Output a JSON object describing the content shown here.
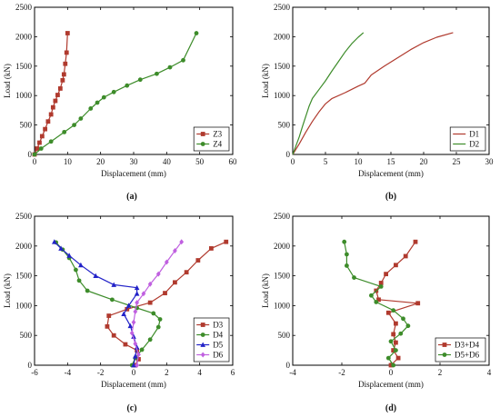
{
  "chart_data": [
    {
      "type": "line",
      "caption": "(a)",
      "xlabel": "Displacement (mm)",
      "ylabel": "Load (kN)",
      "xlim": [
        0,
        60
      ],
      "ylim": [
        0,
        2500
      ],
      "xticks": [
        0,
        10,
        20,
        30,
        40,
        50,
        60
      ],
      "yticks": [
        0,
        500,
        1000,
        1500,
        2000,
        2500
      ],
      "legend": "bottom-right",
      "series": [
        {
          "name": "Z3",
          "color": "#b03a2e",
          "marker": "square",
          "points": [
            [
              0,
              0
            ],
            [
              0.8,
              100
            ],
            [
              1.5,
              200
            ],
            [
              2.3,
              310
            ],
            [
              3.2,
              430
            ],
            [
              4.1,
              560
            ],
            [
              5,
              680
            ],
            [
              5.6,
              800
            ],
            [
              6.3,
              910
            ],
            [
              7,
              1010
            ],
            [
              7.8,
              1120
            ],
            [
              8.5,
              1260
            ],
            [
              8.9,
              1360
            ],
            [
              9.3,
              1540
            ],
            [
              9.7,
              1730
            ],
            [
              10,
              2060
            ]
          ]
        },
        {
          "name": "Z4",
          "color": "#3d8c2a",
          "marker": "circle",
          "points": [
            [
              0,
              0
            ],
            [
              2,
              100
            ],
            [
              5,
              220
            ],
            [
              9,
              380
            ],
            [
              12,
              500
            ],
            [
              14,
              610
            ],
            [
              17,
              780
            ],
            [
              19,
              880
            ],
            [
              21,
              970
            ],
            [
              24,
              1060
            ],
            [
              28,
              1170
            ],
            [
              32,
              1270
            ],
            [
              37,
              1370
            ],
            [
              41,
              1480
            ],
            [
              45,
              1600
            ],
            [
              49,
              2060
            ]
          ]
        }
      ]
    },
    {
      "type": "line",
      "caption": "(b)",
      "xlabel": "Displacement (mm)",
      "ylabel": "Load (kN)",
      "xlim": [
        0,
        30
      ],
      "ylim": [
        0,
        2500
      ],
      "xticks": [
        0,
        5,
        10,
        15,
        20,
        25,
        30
      ],
      "yticks": [
        0,
        500,
        1000,
        1500,
        2000,
        2500
      ],
      "legend": "bottom-right",
      "series": [
        {
          "name": "D1",
          "color": "#b03a2e",
          "marker": "none",
          "points": [
            [
              0,
              0
            ],
            [
              1,
              180
            ],
            [
              2,
              380
            ],
            [
              3,
              560
            ],
            [
              4,
              720
            ],
            [
              5,
              860
            ],
            [
              6,
              950
            ],
            [
              8,
              1050
            ],
            [
              10,
              1160
            ],
            [
              11,
              1210
            ],
            [
              12,
              1350
            ],
            [
              14,
              1500
            ],
            [
              16,
              1640
            ],
            [
              18,
              1780
            ],
            [
              20,
              1900
            ],
            [
              22,
              1990
            ],
            [
              24.5,
              2070
            ]
          ]
        },
        {
          "name": "D2",
          "color": "#3d8c2a",
          "marker": "none",
          "points": [
            [
              0,
              0
            ],
            [
              0.5,
              150
            ],
            [
              1,
              300
            ],
            [
              1.5,
              480
            ],
            [
              2,
              650
            ],
            [
              2.5,
              820
            ],
            [
              3,
              950
            ],
            [
              4,
              1100
            ],
            [
              5,
              1250
            ],
            [
              6,
              1420
            ],
            [
              7,
              1580
            ],
            [
              8,
              1740
            ],
            [
              9,
              1880
            ],
            [
              10,
              1990
            ],
            [
              10.8,
              2070
            ]
          ]
        }
      ]
    },
    {
      "type": "line",
      "caption": "(c)",
      "xlabel": "Displacement (mm)",
      "ylabel": "Load (kN)",
      "xlim": [
        -6,
        6
      ],
      "ylim": [
        0,
        2500
      ],
      "xticks": [
        -6,
        -4,
        -2,
        0,
        2,
        4,
        6
      ],
      "yticks": [
        0,
        500,
        1000,
        1500,
        2000,
        2500
      ],
      "legend": "bottom-right",
      "series": [
        {
          "name": "D3",
          "color": "#b03a2e",
          "marker": "square",
          "points": [
            [
              0.1,
              0
            ],
            [
              0.3,
              100
            ],
            [
              0.2,
              250
            ],
            [
              -0.5,
              350
            ],
            [
              -1.2,
              500
            ],
            [
              -1.6,
              650
            ],
            [
              -1.5,
              830
            ],
            [
              -0.4,
              940
            ],
            [
              1.0,
              1050
            ],
            [
              1.9,
              1210
            ],
            [
              2.5,
              1390
            ],
            [
              3.2,
              1560
            ],
            [
              3.9,
              1760
            ],
            [
              4.7,
              1960
            ],
            [
              5.6,
              2070
            ]
          ]
        },
        {
          "name": "D4",
          "color": "#3d8c2a",
          "marker": "circle",
          "points": [
            [
              -0.1,
              0
            ],
            [
              0.1,
              120
            ],
            [
              0.5,
              260
            ],
            [
              1.0,
              430
            ],
            [
              1.5,
              640
            ],
            [
              1.6,
              770
            ],
            [
              1.2,
              870
            ],
            [
              0.2,
              960
            ],
            [
              -1.3,
              1100
            ],
            [
              -2.8,
              1250
            ],
            [
              -3.3,
              1420
            ],
            [
              -3.5,
              1600
            ],
            [
              -3.9,
              1800
            ],
            [
              -4.3,
              1940
            ],
            [
              -4.7,
              2060
            ]
          ]
        },
        {
          "name": "D5",
          "color": "#2222c8",
          "marker": "triangle",
          "points": [
            [
              0,
              0
            ],
            [
              0.1,
              150
            ],
            [
              0.2,
              300
            ],
            [
              0.0,
              480
            ],
            [
              -0.2,
              660
            ],
            [
              -0.6,
              860
            ],
            [
              -0.3,
              1000
            ],
            [
              0.2,
              1200
            ],
            [
              0.2,
              1300
            ],
            [
              -1.2,
              1350
            ],
            [
              -2.3,
              1500
            ],
            [
              -3.2,
              1680
            ],
            [
              -3.9,
              1840
            ],
            [
              -4.4,
              1960
            ],
            [
              -4.8,
              2070
            ]
          ]
        },
        {
          "name": "D6",
          "color": "#c060e0",
          "marker": "diamond",
          "points": [
            [
              0.2,
              0
            ],
            [
              0.3,
              180
            ],
            [
              0.1,
              360
            ],
            [
              -0.1,
              540
            ],
            [
              0.0,
              720
            ],
            [
              0.1,
              900
            ],
            [
              0.2,
              1050
            ],
            [
              0.6,
              1200
            ],
            [
              1.0,
              1360
            ],
            [
              1.5,
              1530
            ],
            [
              2.0,
              1730
            ],
            [
              2.5,
              1920
            ],
            [
              2.9,
              2070
            ]
          ]
        }
      ]
    },
    {
      "type": "line",
      "caption": "(d)",
      "xlabel": "Displacement (mm)",
      "ylabel": "Load (kN)",
      "xlim": [
        -4,
        4
      ],
      "ylim": [
        0,
        2500
      ],
      "xticks": [
        -4,
        -2,
        0,
        2,
        4
      ],
      "yticks": [
        0,
        500,
        1000,
        1500,
        2000,
        2500
      ],
      "legend": "bottom-right",
      "series": [
        {
          "name": "D3+D4",
          "color": "#b03a2e",
          "marker": "square",
          "points": [
            [
              0.0,
              0
            ],
            [
              0.3,
              120
            ],
            [
              0.1,
              250
            ],
            [
              0.2,
              380
            ],
            [
              0.1,
              520
            ],
            [
              0.2,
              700
            ],
            [
              -0.1,
              880
            ],
            [
              1.1,
              1040
            ],
            [
              -0.5,
              1100
            ],
            [
              -0.6,
              1250
            ],
            [
              -0.4,
              1380
            ],
            [
              -0.2,
              1530
            ],
            [
              0.2,
              1680
            ],
            [
              0.6,
              1830
            ],
            [
              1.0,
              2070
            ]
          ]
        },
        {
          "name": "D5+D6",
          "color": "#3d8c2a",
          "marker": "circle",
          "points": [
            [
              0.1,
              0
            ],
            [
              -0.1,
              120
            ],
            [
              0.2,
              250
            ],
            [
              0.0,
              400
            ],
            [
              0.4,
              530
            ],
            [
              0.7,
              660
            ],
            [
              0.5,
              780
            ],
            [
              0.1,
              920
            ],
            [
              -0.6,
              1060
            ],
            [
              -0.8,
              1170
            ],
            [
              -0.4,
              1320
            ],
            [
              -1.5,
              1470
            ],
            [
              -1.8,
              1670
            ],
            [
              -1.8,
              1860
            ],
            [
              -1.9,
              2070
            ]
          ]
        }
      ]
    }
  ]
}
